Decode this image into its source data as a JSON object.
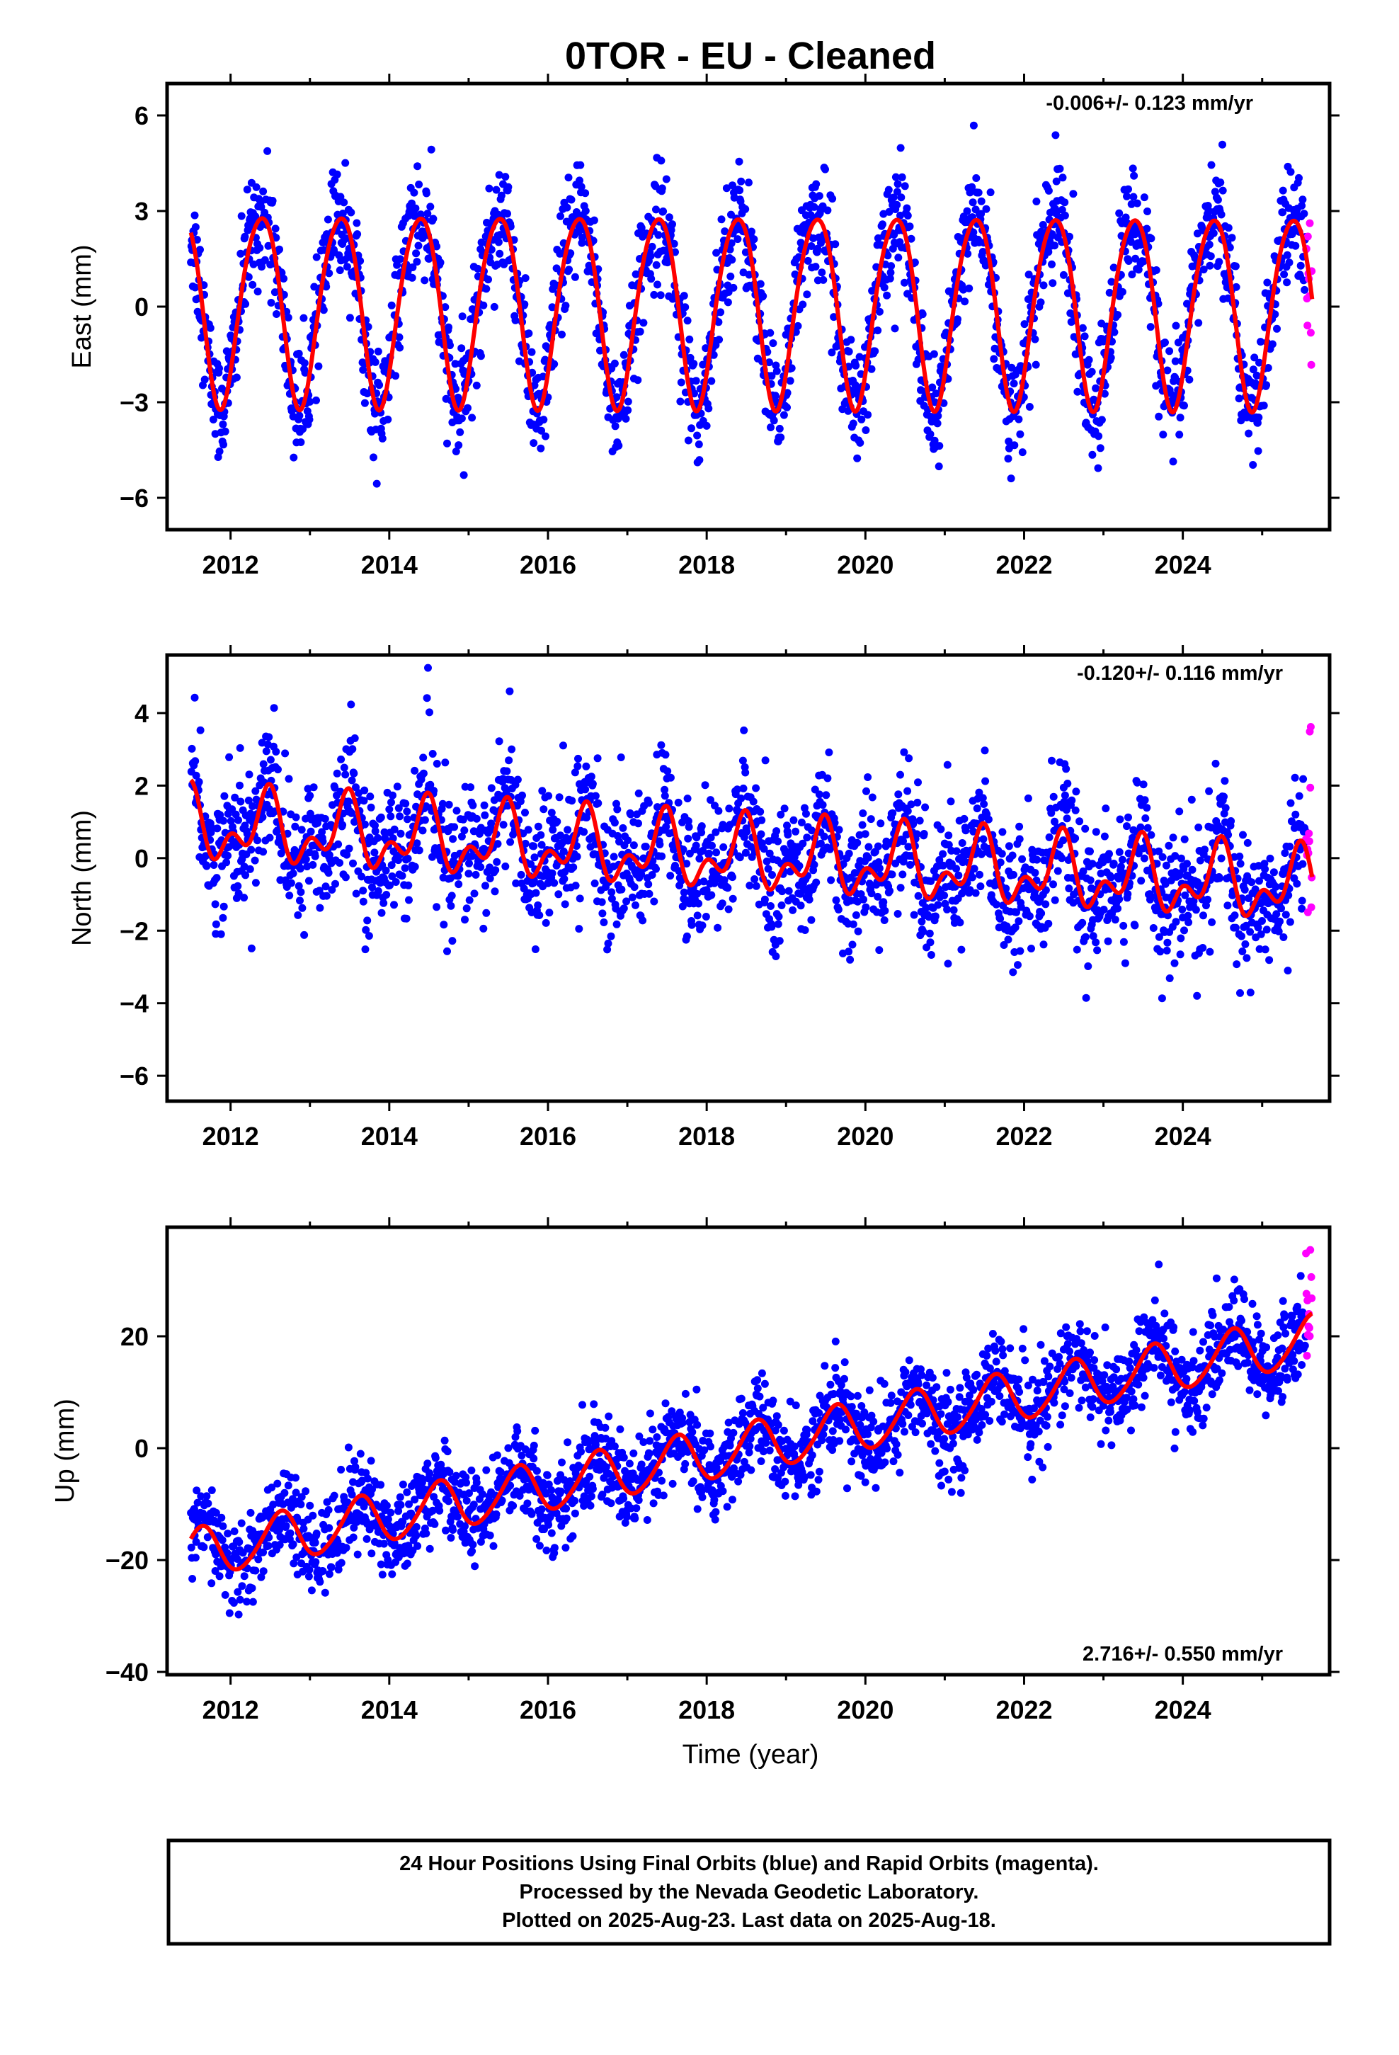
{
  "title": "0TOR  - EU - Cleaned",
  "xlabel": "Time (year)",
  "footer": [
    "24 Hour Positions Using Final Orbits (blue) and Rapid Orbits (magenta).",
    "Processed by the Nevada Geodetic Laboratory.",
    "Plotted on 2025-Aug-23. Last data on 2025-Aug-18."
  ],
  "colors": {
    "final": "#0000ff",
    "rapid": "#ff00ff",
    "model": "#ff0000",
    "frame": "#000000"
  },
  "chart_data": [
    {
      "type": "scatter",
      "name": "east",
      "ylabel": "East (mm)",
      "rate_label": "-0.006+/- 0.123 mm/yr",
      "xlim": [
        2011.2,
        2025.85
      ],
      "ylim": [
        -7.0,
        7.0
      ],
      "xticks": [
        2012,
        2014,
        2016,
        2018,
        2020,
        2022,
        2024
      ],
      "xtick_labels": [
        "2012",
        "2014",
        "2016",
        "2018",
        "2020",
        "2022",
        "2024"
      ],
      "yticks": [
        -6,
        -3,
        0,
        3,
        6
      ],
      "ytick_labels": [
        "−6",
        "−3",
        "0",
        "3",
        "6"
      ],
      "series_start": 2011.5,
      "series_end": 2025.63,
      "rapid_start": 2025.55,
      "model": {
        "intercept": 0.0,
        "rate": -0.006,
        "ref_epoch": 2018.5,
        "annual_amp": 3.0,
        "annual_phase_year": 0.38,
        "semiannual_amp": 0.3,
        "semiannual_phase_year": 0.1
      },
      "scatter_sigma": 0.9
    },
    {
      "type": "scatter",
      "name": "north",
      "ylabel": "North (mm)",
      "rate_label": "-0.120+/- 0.116 mm/yr",
      "xlim": [
        2011.2,
        2025.85
      ],
      "ylim": [
        -6.7,
        5.6
      ],
      "xticks": [
        2012,
        2014,
        2016,
        2018,
        2020,
        2022,
        2024
      ],
      "xtick_labels": [
        "2012",
        "2014",
        "2016",
        "2018",
        "2020",
        "2022",
        "2024"
      ],
      "yticks": [
        -6,
        -4,
        -2,
        0,
        2,
        4
      ],
      "ytick_labels": [
        "−6",
        "−4",
        "−2",
        "0",
        "2",
        "4"
      ],
      "series_start": 2011.5,
      "series_end": 2025.63,
      "rapid_start": 2025.55,
      "model": {
        "intercept": 0.05,
        "rate": -0.12,
        "ref_epoch": 2018.5,
        "annual_amp": 0.75,
        "annual_phase_year": 0.45,
        "semiannual_amp": 0.55,
        "semiannual_phase_year": 0.0
      },
      "scatter_sigma": 0.9
    },
    {
      "type": "scatter",
      "name": "up",
      "ylabel": "Up (mm)",
      "rate_label": "2.716+/- 0.550 mm/yr",
      "xlim": [
        2011.2,
        2025.85
      ],
      "ylim": [
        -40.5,
        39.5
      ],
      "xticks": [
        2012,
        2014,
        2016,
        2018,
        2020,
        2022,
        2024
      ],
      "xtick_labels": [
        "2012",
        "2014",
        "2016",
        "2018",
        "2020",
        "2022",
        "2024"
      ],
      "yticks": [
        -40,
        -20,
        0,
        20
      ],
      "ytick_labels": [
        "−40",
        "−20",
        "0",
        "20"
      ],
      "series_start": 2011.5,
      "series_end": 2025.63,
      "rapid_start": 2025.55,
      "model": {
        "intercept": 0.0,
        "rate": 2.716,
        "ref_epoch": 2018.5,
        "annual_amp": 4.4,
        "annual_phase_year": 0.62,
        "semiannual_amp": 0.5,
        "semiannual_phase_year": 0.2
      },
      "scatter_sigma": 4.0
    }
  ]
}
